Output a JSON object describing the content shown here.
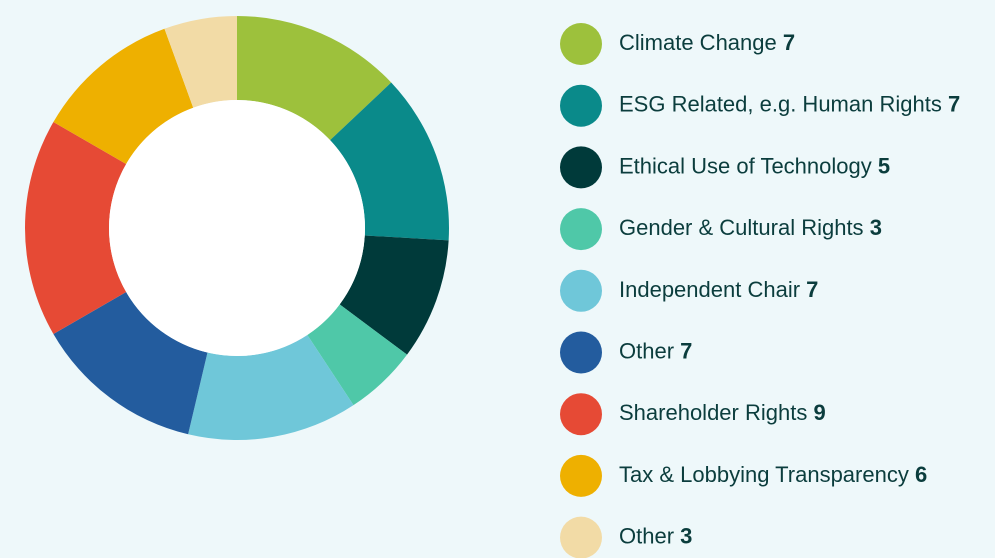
{
  "chart_data": {
    "type": "donut",
    "categories": [
      "Climate Change",
      "ESG Related, e.g. Human Rights",
      "Ethical Use of Technology",
      "Gender & Cultural Rights",
      "Independent Chair",
      "Other",
      "Shareholder Rights",
      "Tax & Lobbying Transparency",
      "Other"
    ],
    "values": [
      7,
      7,
      5,
      3,
      7,
      7,
      9,
      6,
      3
    ],
    "colors": [
      "#9dc13c",
      "#0a8a8a",
      "#003a3a",
      "#4fc8a8",
      "#6fc7d9",
      "#235c9e",
      "#e64a35",
      "#eeb000",
      "#f2dba6"
    ]
  }
}
